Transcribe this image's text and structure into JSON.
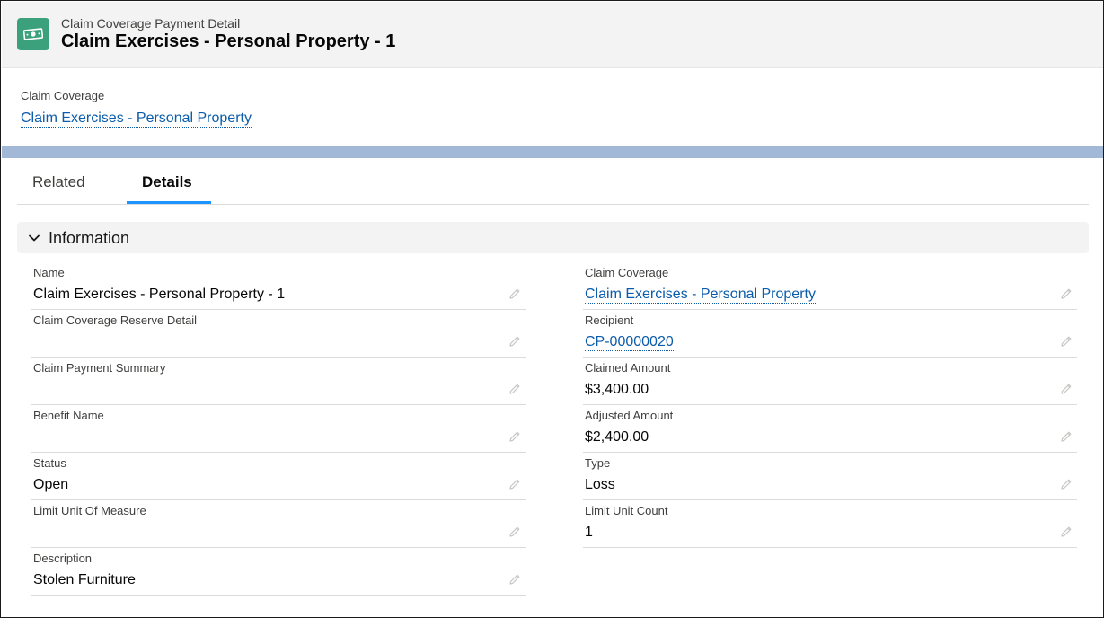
{
  "header": {
    "object_label": "Claim Coverage Payment Detail",
    "title": "Claim Exercises - Personal Property - 1",
    "icon": "money-icon",
    "icon_color": "#3ba17c"
  },
  "highlights": {
    "label": "Claim Coverage",
    "value": "Claim Exercises - Personal Property"
  },
  "tabs": [
    {
      "label": "Related",
      "active": false
    },
    {
      "label": "Details",
      "active": true
    }
  ],
  "section": {
    "title": "Information",
    "expanded": true
  },
  "fields": {
    "left": [
      {
        "label": "Name",
        "value": "Claim Exercises - Personal Property - 1"
      },
      {
        "label": "Claim Coverage Reserve Detail",
        "value": ""
      },
      {
        "label": "Claim Payment Summary",
        "value": ""
      },
      {
        "label": "Benefit Name",
        "value": ""
      },
      {
        "label": "Status",
        "value": "Open"
      },
      {
        "label": "Limit Unit Of Measure",
        "value": ""
      },
      {
        "label": "Description",
        "value": "Stolen Furniture"
      }
    ],
    "right": [
      {
        "label": "Claim Coverage",
        "value": "Claim Exercises - Personal Property",
        "link": true
      },
      {
        "label": "Recipient",
        "value": "CP-00000020",
        "link": true
      },
      {
        "label": "Claimed Amount",
        "value": "$3,400.00"
      },
      {
        "label": "Adjusted Amount",
        "value": "$2,400.00"
      },
      {
        "label": "Type",
        "value": "Loss"
      },
      {
        "label": "Limit Unit Count",
        "value": "1"
      }
    ]
  },
  "colors": {
    "link": "#0b5cab",
    "active_tab_underline": "#1b96ff",
    "band": "#a3b8d6"
  }
}
